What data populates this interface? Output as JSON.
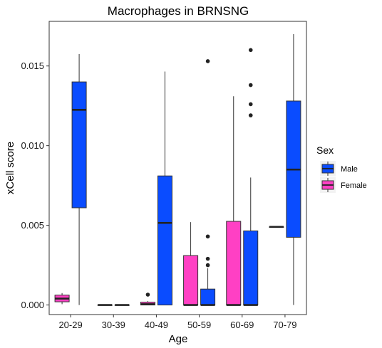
{
  "chart_data": {
    "type": "boxplot",
    "title": "Macrophages in BRNSNG",
    "xlabel": "Age",
    "ylabel": "xCell score",
    "ylim": [
      -0.0006,
      0.0178
    ],
    "yticks": [
      {
        "value": 0.0,
        "label": "0.000"
      },
      {
        "value": 0.005,
        "label": "0.005"
      },
      {
        "value": 0.01,
        "label": "0.010"
      },
      {
        "value": 0.015,
        "label": "0.015"
      }
    ],
    "categories": [
      "20-29",
      "30-39",
      "40-49",
      "50-59",
      "60-69",
      "70-79"
    ],
    "grid": false,
    "legend": {
      "title": "Sex",
      "placement": "right",
      "entries": [
        {
          "key": "Male",
          "label": "Male",
          "color": "#0a4cff"
        },
        {
          "key": "Female",
          "label": "Female",
          "color": "#ff40c4"
        }
      ]
    },
    "boxes": [
      {
        "category": "20-29",
        "sex": "Female",
        "min": 5e-05,
        "q1": 0.0002,
        "median": 0.0004,
        "q3": 0.00062,
        "max": 0.00075,
        "outliers": []
      },
      {
        "category": "20-29",
        "sex": "Male",
        "min": 0.0,
        "q1": 0.0061,
        "median": 0.01225,
        "q3": 0.014,
        "max": 0.01575,
        "outliers": []
      },
      {
        "category": "30-39",
        "sex": "Female",
        "min": 0.0,
        "q1": 0.0,
        "median": 0.0,
        "q3": 0.0,
        "max": 0.0,
        "outliers": []
      },
      {
        "category": "30-39",
        "sex": "Male",
        "min": 0.0,
        "q1": 0.0,
        "median": 0.0,
        "q3": 0.0,
        "max": 0.0,
        "outliers": []
      },
      {
        "category": "40-49",
        "sex": "Female",
        "min": 0.0,
        "q1": 0.0,
        "median": 5e-05,
        "q3": 0.00018,
        "max": 0.00025,
        "outliers": [
          0.00065
        ]
      },
      {
        "category": "40-49",
        "sex": "Male",
        "min": 0.0,
        "q1": 0.0,
        "median": 0.00515,
        "q3": 0.0081,
        "max": 0.01465,
        "outliers": []
      },
      {
        "category": "50-59",
        "sex": "Female",
        "min": 0.0,
        "q1": 0.0,
        "median": 0.0,
        "q3": 0.0031,
        "max": 0.0052,
        "outliers": []
      },
      {
        "category": "50-59",
        "sex": "Male",
        "min": 0.0,
        "q1": 0.0,
        "median": 0.0,
        "q3": 0.001,
        "max": 0.0023,
        "outliers": [
          0.0025,
          0.0029,
          0.0043,
          0.0153
        ]
      },
      {
        "category": "60-69",
        "sex": "Female",
        "min": 0.0,
        "q1": 0.0,
        "median": 0.0,
        "q3": 0.00525,
        "max": 0.0131,
        "outliers": []
      },
      {
        "category": "60-69",
        "sex": "Male",
        "min": 0.0,
        "q1": 0.0,
        "median": 0.0,
        "q3": 0.00465,
        "max": 0.008,
        "outliers": [
          0.0119,
          0.0126,
          0.0138,
          0.016
        ]
      },
      {
        "category": "70-79",
        "sex": "Female",
        "min": 0.0049,
        "q1": 0.0049,
        "median": 0.0049,
        "q3": 0.0049,
        "max": 0.0049,
        "outliers": []
      },
      {
        "category": "70-79",
        "sex": "Male",
        "min": 0.0,
        "q1": 0.00425,
        "median": 0.0085,
        "q3": 0.0128,
        "max": 0.017,
        "outliers": []
      }
    ]
  }
}
